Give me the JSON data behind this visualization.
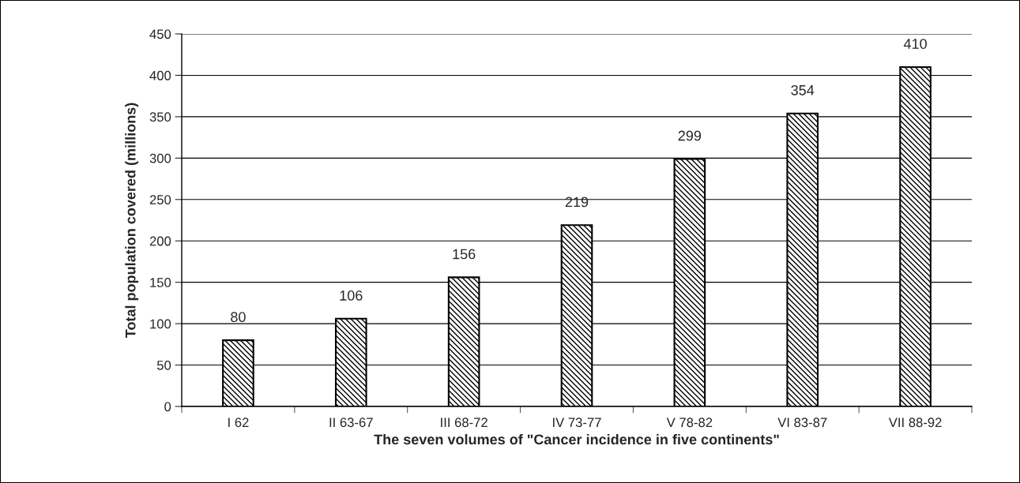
{
  "chart_data": {
    "type": "bar",
    "xlabel": "The seven volumes of \"Cancer incidence in five continents\"",
    "ylabel": "Total population covered (millions)",
    "categories": [
      "I 62",
      "II 63-67",
      "III 68-72",
      "IV 73-77",
      "V 78-82",
      "VI 83-87",
      "VII 88-92"
    ],
    "values": [
      80,
      106,
      156,
      219,
      299,
      354,
      410
    ],
    "color": "#000000",
    "ylim": [
      0,
      450
    ],
    "yticks": [
      0,
      50,
      100,
      150,
      200,
      250,
      300,
      350,
      400,
      450
    ],
    "grid": "y",
    "data_labels": true
  }
}
